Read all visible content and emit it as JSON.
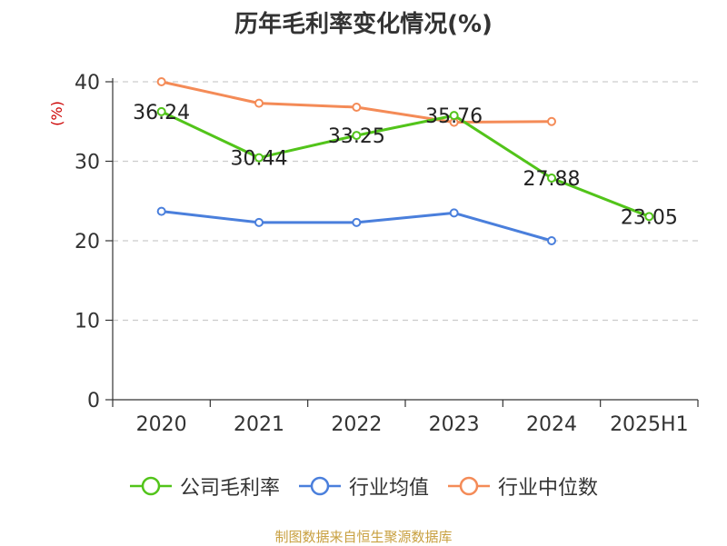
{
  "title": "历年毛利率变化情况(%)",
  "source_note": "制图数据来自恒生聚源数据库",
  "colors": {
    "company": "#52c41a",
    "industry_avg": "#4a7fdc",
    "industry_median": "#f48b57",
    "ylabel": "#cc0000",
    "source": "#c8a040"
  },
  "legend": [
    {
      "label": "公司毛利率"
    },
    {
      "label": "行业均值"
    },
    {
      "label": "行业中位数"
    }
  ],
  "chart_data": {
    "type": "line",
    "title": "历年毛利率变化情况(%)",
    "xlabel": "",
    "ylabel": "(%)",
    "categories": [
      "2020",
      "2021",
      "2022",
      "2023",
      "2024",
      "2025H1"
    ],
    "ylim": [
      0,
      40
    ],
    "yticks": [
      0,
      10,
      20,
      30,
      40
    ],
    "grid": true,
    "legend_position": "bottom",
    "series": [
      {
        "name": "公司毛利率",
        "values": [
          36.24,
          30.44,
          33.25,
          35.76,
          27.88,
          23.05
        ],
        "labels": [
          "36.24",
          "30.44",
          "33.25",
          "35.76",
          "27.88",
          "23.05"
        ]
      },
      {
        "name": "行业均值",
        "values": [
          23.7,
          22.3,
          22.3,
          23.5,
          20.0,
          null
        ]
      },
      {
        "name": "行业中位数",
        "values": [
          40.0,
          37.3,
          36.8,
          34.9,
          35.0,
          null
        ]
      }
    ]
  }
}
